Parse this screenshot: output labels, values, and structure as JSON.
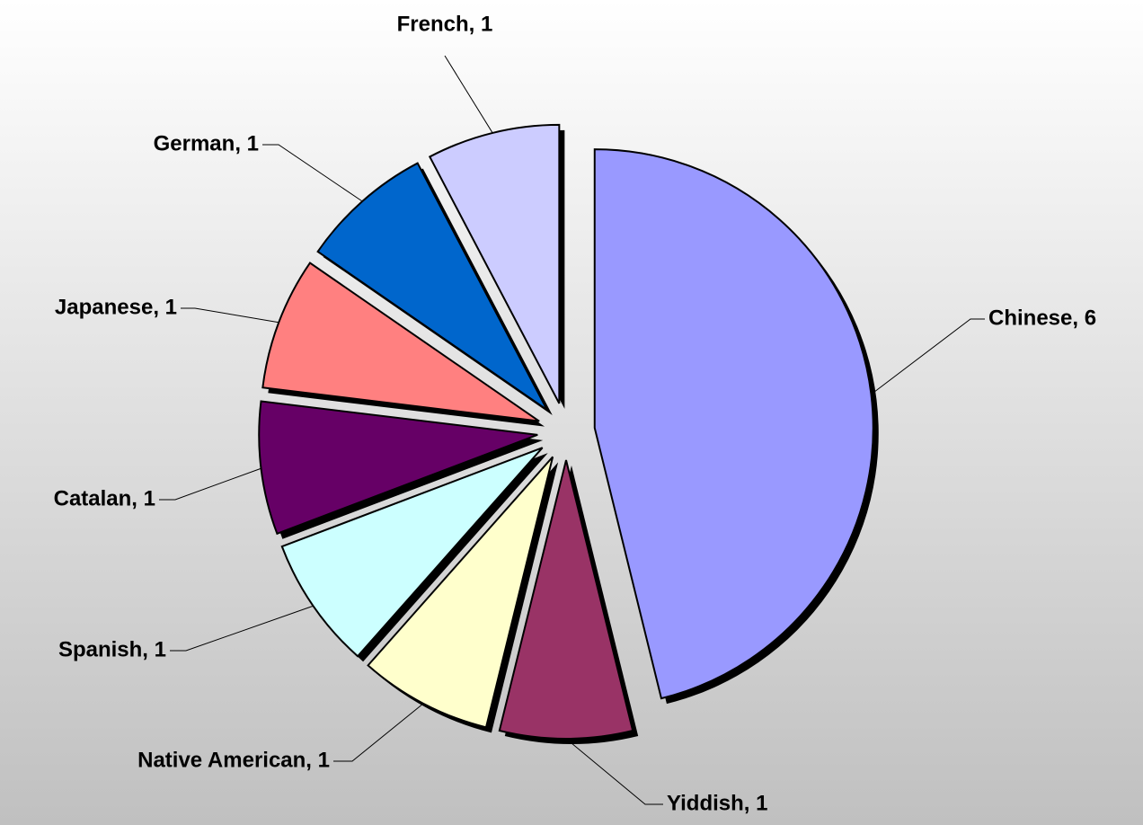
{
  "chart_data": {
    "type": "pie",
    "categories": [
      "Chinese",
      "Yiddish",
      "Native American",
      "Spanish",
      "Catalan",
      "Japanese",
      "German",
      "French"
    ],
    "values": [
      6,
      1,
      1,
      1,
      1,
      1,
      1,
      1
    ],
    "value_labels": [
      "Chinese,  6",
      "Yiddish,  1",
      "Native American,  1",
      "Spanish,  1",
      "Catalan,  1",
      "Japanese,  1",
      "German,  1",
      "French,  1"
    ],
    "colors": [
      "#9999ff",
      "#993366",
      "#ffffcc",
      "#ccffff",
      "#660066",
      "#ff8080",
      "#0066cc",
      "#ccccff"
    ]
  }
}
